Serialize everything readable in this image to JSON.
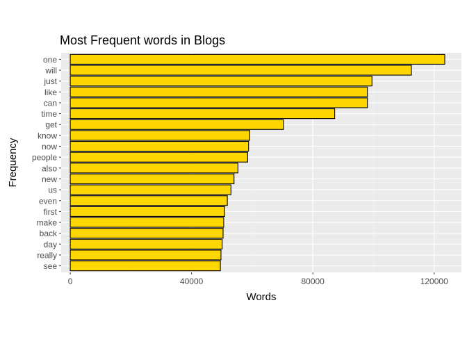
{
  "chart_data": {
    "type": "bar",
    "orientation": "horizontal",
    "title": "Most Frequent words in Blogs",
    "xlabel": "Words",
    "ylabel": "Frequency",
    "categories": [
      "one",
      "will",
      "just",
      "like",
      "can",
      "time",
      "get",
      "know",
      "now",
      "people",
      "also",
      "new",
      "us",
      "even",
      "first",
      "make",
      "back",
      "day",
      "really",
      "see"
    ],
    "values": [
      123500,
      112500,
      99500,
      98000,
      98000,
      87200,
      70300,
      59200,
      58800,
      58500,
      55300,
      54000,
      53000,
      51800,
      50900,
      50600,
      50400,
      50100,
      49700,
      49500
    ],
    "xlim": [
      -3000,
      129000
    ],
    "xticks": [
      0,
      40000,
      80000,
      120000
    ],
    "xtick_labels": [
      "0",
      "40000",
      "80000",
      "120000"
    ],
    "grid": true,
    "legend": "none",
    "colors": {
      "bar_fill": "#FFD700",
      "bar_stroke": "#000000",
      "panel_background": "#EBEBEB",
      "grid_major": "#FFFFFF",
      "grid_minor": "#F5F5F5",
      "text": "#4D4D4D",
      "title_text": "#000000"
    }
  }
}
